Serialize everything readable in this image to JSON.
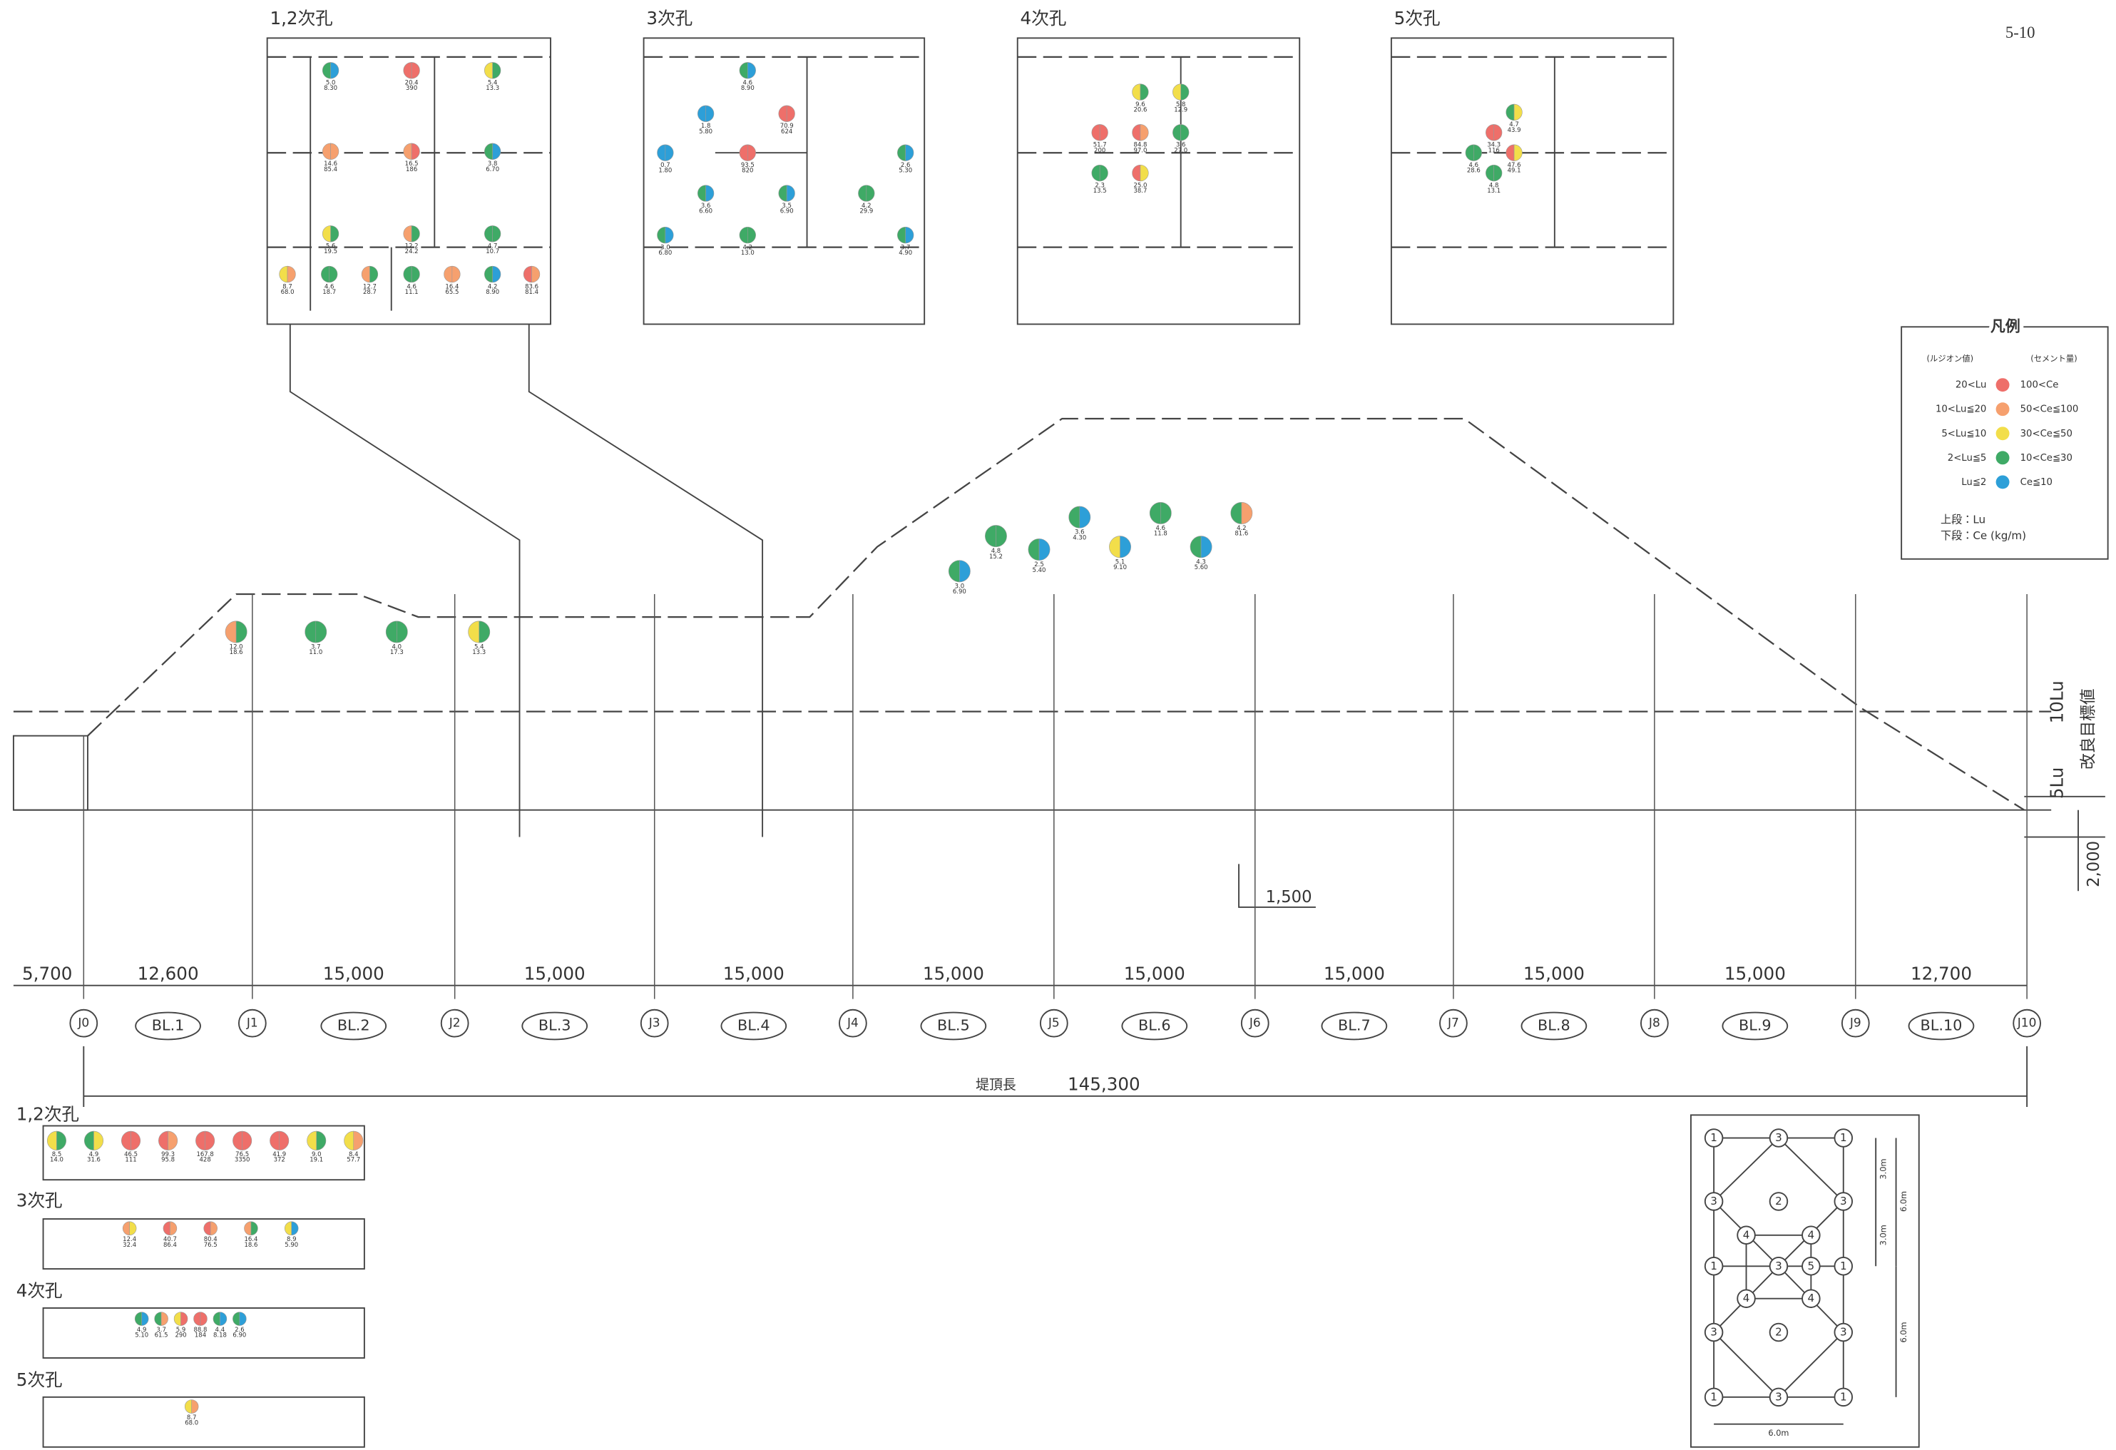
{
  "page_number": "5-10",
  "palette": {
    "red": "#ee6f6a",
    "orange": "#f6a06e",
    "yellow": "#f2de4a",
    "green": "#3faa66",
    "blue": "#2d9fd8"
  },
  "insets": [
    {
      "title": "1,2次孔",
      "points": [
        {
          "lu": "5.0",
          "ce": "8.30",
          "colors": [
            "green",
            "blue"
          ]
        },
        {
          "lu": "20.4",
          "ce": "390",
          "colors": [
            "red",
            "red"
          ]
        },
        {
          "lu": "5.4",
          "ce": "13.3",
          "colors": [
            "yellow",
            "green"
          ]
        },
        {
          "lu": "14.6",
          "ce": "85.4",
          "colors": [
            "orange",
            "orange"
          ]
        },
        {
          "lu": "16.5",
          "ce": "186",
          "colors": [
            "orange",
            "red"
          ]
        },
        {
          "lu": "3.8",
          "ce": "6.70",
          "colors": [
            "green",
            "blue"
          ]
        },
        {
          "lu": "5.6",
          "ce": "19.5",
          "colors": [
            "yellow",
            "green"
          ]
        },
        {
          "lu": "12.2",
          "ce": "24.2",
          "colors": [
            "orange",
            "green"
          ]
        },
        {
          "lu": "4.7",
          "ce": "10.7",
          "colors": [
            "green",
            "green"
          ]
        },
        {
          "lu": "8.7",
          "ce": "68.0",
          "colors": [
            "yellow",
            "orange"
          ]
        },
        {
          "lu": "4.6",
          "ce": "18.7",
          "colors": [
            "green",
            "green"
          ]
        },
        {
          "lu": "12.7",
          "ce": "28.7",
          "colors": [
            "orange",
            "green"
          ]
        },
        {
          "lu": "4.6",
          "ce": "11.1",
          "colors": [
            "green",
            "green"
          ]
        },
        {
          "lu": "16.4",
          "ce": "65.5",
          "colors": [
            "orange",
            "orange"
          ]
        },
        {
          "lu": "4.2",
          "ce": "8.90",
          "colors": [
            "green",
            "blue"
          ]
        },
        {
          "lu": "83.6",
          "ce": "81.4",
          "colors": [
            "red",
            "orange"
          ]
        }
      ]
    },
    {
      "title": "3次孔",
      "points": [
        {
          "lu": "4.6",
          "ce": "8.90",
          "colors": [
            "green",
            "blue"
          ]
        },
        {
          "lu": "1.8",
          "ce": "5.80",
          "colors": [
            "blue",
            "blue"
          ]
        },
        {
          "lu": "70.9",
          "ce": "624",
          "colors": [
            "red",
            "red"
          ]
        },
        {
          "lu": "0.7",
          "ce": "1.80",
          "colors": [
            "blue",
            "blue"
          ]
        },
        {
          "lu": "93.5",
          "ce": "820",
          "colors": [
            "red",
            "red"
          ]
        },
        {
          "lu": "2.6",
          "ce": "5.30",
          "colors": [
            "green",
            "blue"
          ]
        },
        {
          "lu": "3.6",
          "ce": "6.60",
          "colors": [
            "green",
            "blue"
          ]
        },
        {
          "lu": "3.5",
          "ce": "6.90",
          "colors": [
            "green",
            "blue"
          ]
        },
        {
          "lu": "4.2",
          "ce": "29.9",
          "colors": [
            "green",
            "green"
          ]
        },
        {
          "lu": "3.0",
          "ce": "6.80",
          "colors": [
            "green",
            "blue"
          ]
        },
        {
          "lu": "4.2",
          "ce": "13.0",
          "colors": [
            "green",
            "green"
          ]
        },
        {
          "lu": "3.7",
          "ce": "4.90",
          "colors": [
            "green",
            "blue"
          ]
        }
      ]
    },
    {
      "title": "4次孔",
      "points": [
        {
          "lu": "9.6",
          "ce": "20.6",
          "colors": [
            "yellow",
            "green"
          ]
        },
        {
          "lu": "5.8",
          "ce": "12.9",
          "colors": [
            "yellow",
            "green"
          ]
        },
        {
          "lu": "51.7",
          "ce": "200",
          "colors": [
            "red",
            "red"
          ]
        },
        {
          "lu": "84.8",
          "ce": "97.0",
          "colors": [
            "red",
            "orange"
          ]
        },
        {
          "lu": "3.6",
          "ce": "27.0",
          "colors": [
            "green",
            "green"
          ]
        },
        {
          "lu": "2.3",
          "ce": "13.5",
          "colors": [
            "green",
            "green"
          ]
        },
        {
          "lu": "25.0",
          "ce": "38.7",
          "colors": [
            "red",
            "yellow"
          ]
        }
      ]
    },
    {
      "title": "5次孔",
      "points": [
        {
          "lu": "4.7",
          "ce": "43.9",
          "colors": [
            "green",
            "yellow"
          ]
        },
        {
          "lu": "34.3",
          "ce": "116",
          "colors": [
            "red",
            "red"
          ]
        },
        {
          "lu": "4.6",
          "ce": "28.6",
          "colors": [
            "green",
            "green"
          ]
        },
        {
          "lu": "47.6",
          "ce": "49.1",
          "colors": [
            "red",
            "yellow"
          ]
        },
        {
          "lu": "4.8",
          "ce": "13.1",
          "colors": [
            "green",
            "green"
          ]
        }
      ]
    }
  ],
  "legend": {
    "title": "凡例",
    "lu_header": "(ルジオン値)",
    "ce_header": "(セメント量)",
    "rows": [
      {
        "lu": "20<Lu",
        "ce": "100<Ce",
        "color": "red"
      },
      {
        "lu": "10<Lu≦20",
        "ce": "50<Ce≦100",
        "color": "orange"
      },
      {
        "lu": "5<Lu≦10",
        "ce": "30<Ce≦50",
        "color": "yellow"
      },
      {
        "lu": "2<Lu≦5",
        "ce": "10<Ce≦30",
        "color": "green"
      },
      {
        "lu": "Lu≦2",
        "ce": "Ce≦10",
        "color": "blue"
      }
    ],
    "note_upper": "上段：Lu",
    "note_lower": "下段：Ce (kg/m)"
  },
  "profile": {
    "blocks": [
      "BL.1",
      "BL.2",
      "BL.3",
      "BL.4",
      "BL.5",
      "BL.6",
      "BL.7",
      "BL.8",
      "BL.9",
      "BL.10"
    ],
    "joints": [
      "J0",
      "J1",
      "J2",
      "J3",
      "J4",
      "J5",
      "J6",
      "J7",
      "J8",
      "J9",
      "J10"
    ],
    "spans": [
      "5,700",
      "12,600",
      "15,000",
      "15,000",
      "15,000",
      "15,000",
      "15,000",
      "15,000",
      "15,000",
      "15,000",
      "12,700"
    ],
    "crest_label": "堤頂長",
    "crest_length": "145,300",
    "lu10": "10Lu",
    "lu5": "5Lu",
    "target": "改良目標値",
    "dim_depth": "2,000",
    "dim_offset": "1,500",
    "points": [
      {
        "lu": "3.6",
        "ce": "4.30",
        "colors": [
          "green",
          "blue"
        ]
      },
      {
        "lu": "5.1",
        "ce": "9.10",
        "colors": [
          "yellow",
          "blue"
        ]
      },
      {
        "lu": "4.6",
        "ce": "11.8",
        "colors": [
          "green",
          "green"
        ]
      },
      {
        "lu": "4.3",
        "ce": "5.60",
        "colors": [
          "green",
          "blue"
        ]
      },
      {
        "lu": "4.2",
        "ce": "81.6",
        "colors": [
          "green",
          "orange"
        ]
      },
      {
        "lu": "4.8",
        "ce": "15.2",
        "colors": [
          "green",
          "green"
        ]
      },
      {
        "lu": "3.0",
        "ce": "6.90",
        "colors": [
          "green",
          "blue"
        ]
      },
      {
        "lu": "2.5",
        "ce": "5.40",
        "colors": [
          "green",
          "blue"
        ]
      },
      {
        "lu": "4.0",
        "ce": "17.3",
        "colors": [
          "green",
          "green"
        ]
      },
      {
        "lu": "3.7",
        "ce": "11.0",
        "colors": [
          "green",
          "green"
        ]
      },
      {
        "lu": "12.0",
        "ce": "18.6",
        "colors": [
          "orange",
          "green"
        ]
      },
      {
        "lu": "5.4",
        "ce": "13.3",
        "colors": [
          "yellow",
          "green"
        ]
      }
    ]
  },
  "strips": [
    {
      "title": "1,2次孔",
      "points": [
        {
          "lu": "8.5",
          "ce": "14.0",
          "colors": [
            "yellow",
            "green"
          ]
        },
        {
          "lu": "4.9",
          "ce": "31.6",
          "colors": [
            "green",
            "yellow"
          ]
        },
        {
          "lu": "46.5",
          "ce": "111",
          "colors": [
            "red",
            "red"
          ]
        },
        {
          "lu": "99.3",
          "ce": "95.8",
          "colors": [
            "red",
            "orange"
          ]
        },
        {
          "lu": "167.8",
          "ce": "428",
          "colors": [
            "red",
            "red"
          ]
        },
        {
          "lu": "76.5",
          "ce": "3350",
          "colors": [
            "red",
            "red"
          ]
        },
        {
          "lu": "41.9",
          "ce": "372",
          "colors": [
            "red",
            "red"
          ]
        },
        {
          "lu": "9.0",
          "ce": "19.1",
          "colors": [
            "yellow",
            "green"
          ]
        },
        {
          "lu": "8.4",
          "ce": "57.7",
          "colors": [
            "yellow",
            "orange"
          ]
        }
      ]
    },
    {
      "title": "3次孔",
      "points": [
        {
          "lu": "12.4",
          "ce": "32.4",
          "colors": [
            "orange",
            "yellow"
          ]
        },
        {
          "lu": "40.7",
          "ce": "86.4",
          "colors": [
            "red",
            "orange"
          ]
        },
        {
          "lu": "80.4",
          "ce": "76.5",
          "colors": [
            "red",
            "orange"
          ]
        },
        {
          "lu": "16.4",
          "ce": "18.6",
          "colors": [
            "orange",
            "green"
          ]
        },
        {
          "lu": "8.9",
          "ce": "5.90",
          "colors": [
            "yellow",
            "blue"
          ]
        }
      ]
    },
    {
      "title": "4次孔",
      "points": [
        {
          "lu": "4.9",
          "ce": "5.10",
          "colors": [
            "green",
            "blue"
          ]
        },
        {
          "lu": "3.7",
          "ce": "61.5",
          "colors": [
            "green",
            "orange"
          ]
        },
        {
          "lu": "5.9",
          "ce": "290",
          "colors": [
            "yellow",
            "red"
          ]
        },
        {
          "lu": "88.8",
          "ce": "184",
          "colors": [
            "red",
            "red"
          ]
        },
        {
          "lu": "4.4",
          "ce": "8.18",
          "colors": [
            "green",
            "blue"
          ]
        },
        {
          "lu": "2.6",
          "ce": "6.90",
          "colors": [
            "green",
            "blue"
          ]
        }
      ]
    },
    {
      "title": "5次孔",
      "points": [
        {
          "lu": "8.7",
          "ce": "68.0",
          "colors": [
            "yellow",
            "orange"
          ]
        }
      ]
    }
  ],
  "pattern": {
    "nodes": [
      "1",
      "3",
      "1",
      "3",
      "2",
      "3",
      "1",
      "3",
      "1",
      "4",
      "4",
      "5",
      "4",
      "4",
      "3",
      "2",
      "3",
      "1",
      "3",
      "1"
    ],
    "dims": [
      "3.0m",
      "6.0m",
      "3.0m",
      "6.0m",
      "6.0m"
    ]
  }
}
